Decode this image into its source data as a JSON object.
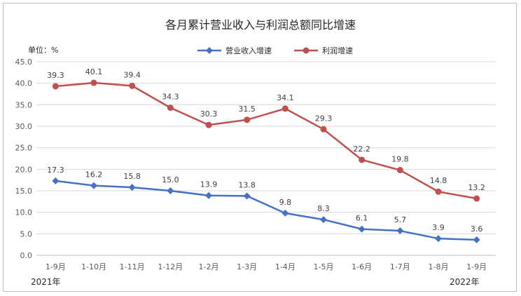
{
  "chart_data": {
    "type": "line",
    "title": "各月累计营业收入与利润总额同比增速",
    "unit_label": "单位：%",
    "categories": [
      "1-9月",
      "1-10月",
      "1-11月",
      "1-12月",
      "1-2月",
      "1-3月",
      "1-4月",
      "1-5月",
      "1-6月",
      "1-7月",
      "1-8月",
      "1-9月"
    ],
    "series": [
      {
        "name": "营业收入增速",
        "color": "#4472C4",
        "marker": "diamond",
        "values": [
          17.3,
          16.2,
          15.8,
          15.0,
          13.9,
          13.8,
          9.8,
          8.3,
          6.1,
          5.7,
          3.9,
          3.6
        ],
        "labels": [
          "17.3",
          "16.2",
          "15.8",
          "15.0",
          "13.9",
          "13.8",
          "9.8",
          "8.3",
          "6.1",
          "5.7",
          "3.9",
          "3.6"
        ]
      },
      {
        "name": "利润增速",
        "color": "#C0504D",
        "marker": "circle",
        "values": [
          39.3,
          40.1,
          39.4,
          34.3,
          30.3,
          31.5,
          34.1,
          29.3,
          22.2,
          19.8,
          14.8,
          13.2
        ],
        "labels": [
          "39.3",
          "40.1",
          "39.4",
          "34.3",
          "30.3",
          "31.5",
          "34.1",
          "29.3",
          "22.2",
          "19.8",
          "14.8",
          "13.2"
        ]
      }
    ],
    "yticks": [
      "0.0",
      "5.0",
      "10.0",
      "15.0",
      "20.0",
      "25.0",
      "30.0",
      "35.0",
      "40.0",
      "45.0"
    ],
    "ylim": [
      0,
      45
    ],
    "grid": true,
    "legend_position": "top",
    "year_labels": {
      "start": "2021年",
      "end": "2022年"
    }
  }
}
